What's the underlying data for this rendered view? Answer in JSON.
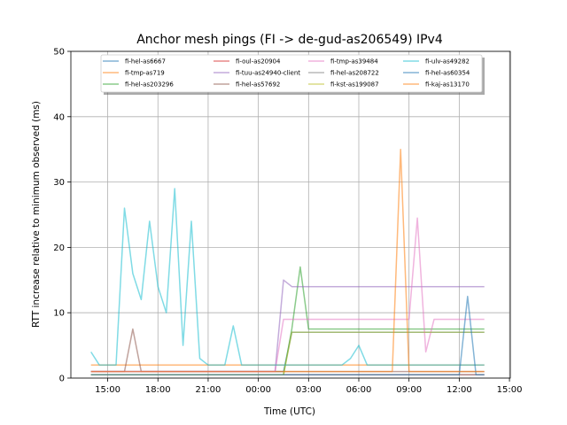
{
  "chart_data": {
    "type": "line",
    "title": "Anchor mesh pings (FI -> de-gud-as206549) IPv4",
    "xlabel": "Time (UTC)",
    "ylabel": "RTT increase relative to minimum observed (ms)",
    "ylim": [
      0,
      50
    ],
    "xlim_hours": [
      12.8,
      39.05
    ],
    "grid": true,
    "legend_placement": "top-center",
    "yticks": [
      0,
      10,
      20,
      30,
      40,
      50
    ],
    "xticks": [
      {
        "hour": 15,
        "label": "15:00"
      },
      {
        "hour": 18,
        "label": "18:00"
      },
      {
        "hour": 21,
        "label": "21:00"
      },
      {
        "hour": 24,
        "label": "00:00"
      },
      {
        "hour": 27,
        "label": "03:00"
      },
      {
        "hour": 30,
        "label": "06:00"
      },
      {
        "hour": 33,
        "label": "09:00"
      },
      {
        "hour": 36,
        "label": "12:00"
      },
      {
        "hour": 39,
        "label": "15:00"
      }
    ],
    "x_start_hour": 14,
    "x_step_hours": 0.5,
    "series": [
      {
        "name": "fi-hel-as6667",
        "color": "#1f77b4",
        "values": [
          1,
          1,
          1,
          1,
          1,
          1,
          1,
          1,
          1,
          1,
          1,
          1,
          1,
          1,
          1,
          1,
          1,
          1,
          1,
          1,
          1,
          1,
          1,
          1,
          7,
          7,
          7,
          7,
          7,
          7,
          7,
          7,
          7,
          7,
          7,
          7,
          7,
          7,
          7,
          7,
          7,
          7,
          7,
          7,
          7,
          7,
          7,
          7
        ]
      },
      {
        "name": "fi-tmp-as719",
        "color": "#ff7f0e",
        "values": [
          2,
          2,
          2,
          2,
          2,
          2,
          2,
          2,
          2,
          2,
          2,
          2,
          2,
          2,
          2,
          2,
          2,
          2,
          2,
          2,
          2,
          2,
          2,
          2,
          2,
          2,
          2,
          2,
          2,
          2,
          2,
          2,
          2,
          2,
          2,
          2,
          2,
          2,
          2,
          2,
          2,
          2,
          2,
          2,
          2,
          2,
          2,
          2
        ]
      },
      {
        "name": "fi-hel-as203296",
        "color": "#2ca02c",
        "values": [
          0.5,
          0.5,
          0.5,
          0.5,
          0.5,
          0.5,
          0.5,
          0.5,
          0.5,
          0.5,
          0.5,
          0.5,
          0.5,
          0.5,
          0.5,
          0.5,
          0.5,
          0.5,
          0.5,
          0.5,
          0.5,
          0.5,
          0.5,
          0.5,
          7.5,
          17,
          7.5,
          7.5,
          7.5,
          7.5,
          7.5,
          7.5,
          7.5,
          7.5,
          7.5,
          7.5,
          7.5,
          7.5,
          7.5,
          7.5,
          7.5,
          7.5,
          7.5,
          7.5,
          7.5,
          7.5,
          7.5,
          7.5
        ]
      },
      {
        "name": "fi-oul-as20904",
        "color": "#d62728",
        "values": [
          0.5,
          0.5,
          0.5,
          0.5,
          0.5,
          0.5,
          0.5,
          0.5,
          0.5,
          0.5,
          0.5,
          0.5,
          0.5,
          0.5,
          0.5,
          0.5,
          0.5,
          0.5,
          0.5,
          0.5,
          0.5,
          0.5,
          0.5,
          0.5,
          0.5,
          0.5,
          0.5,
          0.5,
          0.5,
          0.5,
          0.5,
          0.5,
          0.5,
          0.5,
          0.5,
          0.5,
          0.5,
          0.5,
          0.5,
          0.5,
          0.5,
          0.5,
          0.5,
          0.5,
          0.5,
          0.5,
          0.5,
          0.5
        ]
      },
      {
        "name": "fi-tuu-as24940-client",
        "color": "#9467bd",
        "values": [
          1,
          1,
          1,
          1,
          1,
          1,
          1,
          1,
          1,
          1,
          1,
          1,
          1,
          1,
          1,
          1,
          1,
          1,
          1,
          1,
          1,
          1,
          1,
          15,
          14,
          14,
          14,
          14,
          14,
          14,
          14,
          14,
          14,
          14,
          14,
          14,
          14,
          14,
          14,
          14,
          14,
          14,
          14,
          14,
          14,
          14,
          14,
          14
        ]
      },
      {
        "name": "fi-hel-as57692",
        "color": "#8c564b",
        "values": [
          1,
          1,
          1,
          1,
          1,
          7.5,
          1,
          1,
          1,
          1,
          1,
          1,
          1,
          1,
          1,
          1,
          1,
          1,
          1,
          1,
          1,
          1,
          1,
          1,
          1,
          1,
          1,
          1,
          1,
          1,
          1,
          1,
          1,
          1,
          1,
          1,
          1,
          1,
          1,
          1,
          1,
          1,
          1,
          1,
          1,
          1,
          1,
          1
        ]
      },
      {
        "name": "fi-tmp-as39484",
        "color": "#e377c2",
        "values": [
          1,
          1,
          1,
          1,
          1,
          1,
          1,
          1,
          1,
          1,
          1,
          1,
          1,
          1,
          1,
          1,
          1,
          1,
          1,
          1,
          1,
          1,
          1,
          9,
          9,
          9,
          9,
          9,
          9,
          9,
          9,
          9,
          9,
          9,
          9,
          9,
          9,
          9,
          9,
          24.5,
          4,
          9,
          9,
          9,
          9,
          9,
          9,
          9
        ]
      },
      {
        "name": "fi-hel-as208722",
        "color": "#7f7f7f",
        "values": [
          0.5,
          0.5,
          0.5,
          0.5,
          0.5,
          0.5,
          0.5,
          0.5,
          0.5,
          0.5,
          0.5,
          0.5,
          0.5,
          0.5,
          0.5,
          0.5,
          0.5,
          0.5,
          0.5,
          0.5,
          0.5,
          0.5,
          0.5,
          0.5,
          0.5,
          0.5,
          0.5,
          0.5,
          0.5,
          0.5,
          0.5,
          0.5,
          0.5,
          0.5,
          0.5,
          0.5,
          0.5,
          0.5,
          0.5,
          0.5,
          0.5,
          0.5,
          0.5,
          0.5,
          0.5,
          0.5,
          0.5,
          0.5
        ]
      },
      {
        "name": "fi-kst-as199087",
        "color": "#bcbd22",
        "values": [
          0.5,
          0.5,
          0.5,
          0.5,
          0.5,
          0.5,
          0.5,
          0.5,
          0.5,
          0.5,
          0.5,
          0.5,
          0.5,
          0.5,
          0.5,
          0.5,
          0.5,
          0.5,
          0.5,
          0.5,
          0.5,
          0.5,
          0.5,
          0.5,
          7,
          7,
          7,
          7,
          7,
          7,
          7,
          7,
          7,
          7,
          7,
          7,
          7,
          7,
          7,
          7,
          7,
          7,
          7,
          7,
          7,
          7,
          7,
          7
        ]
      },
      {
        "name": "fi-ulv-as49282",
        "color": "#17becf",
        "values": [
          4,
          2,
          2,
          2,
          26,
          16,
          12,
          24,
          14,
          10,
          29,
          5,
          24,
          3,
          2,
          2,
          2,
          8,
          2,
          2,
          2,
          2,
          2,
          2,
          2,
          2,
          2,
          2,
          2,
          2,
          2,
          3,
          5,
          2,
          2,
          2,
          2,
          2,
          2,
          2,
          2,
          2,
          2,
          2,
          2,
          2,
          2,
          2
        ]
      },
      {
        "name": "fi-hel-as60354",
        "color": "#1f77b4",
        "values": [
          0.5,
          0.5,
          0.5,
          0.5,
          0.5,
          0.5,
          0.5,
          0.5,
          0.5,
          0.5,
          0.5,
          0.5,
          0.5,
          0.5,
          0.5,
          0.5,
          0.5,
          0.5,
          0.5,
          0.5,
          0.5,
          0.5,
          0.5,
          0.5,
          0.5,
          0.5,
          0.5,
          0.5,
          0.5,
          0.5,
          0.5,
          0.5,
          0.5,
          0.5,
          0.5,
          0.5,
          0.5,
          0.5,
          0.5,
          0.5,
          0.5,
          0.5,
          0.5,
          0.5,
          0.5,
          12.5,
          0.5,
          0.5
        ]
      },
      {
        "name": "fi-kaj-as13170",
        "color": "#ff7f0e",
        "values": [
          1,
          1,
          1,
          1,
          1,
          1,
          1,
          1,
          1,
          1,
          1,
          1,
          1,
          1,
          1,
          1,
          1,
          1,
          1,
          1,
          1,
          1,
          1,
          1,
          1,
          1,
          1,
          1,
          1,
          1,
          1,
          1,
          1,
          1,
          1,
          1,
          1,
          35,
          1,
          1,
          1,
          1,
          1,
          1,
          1,
          1,
          1,
          1
        ]
      }
    ]
  }
}
